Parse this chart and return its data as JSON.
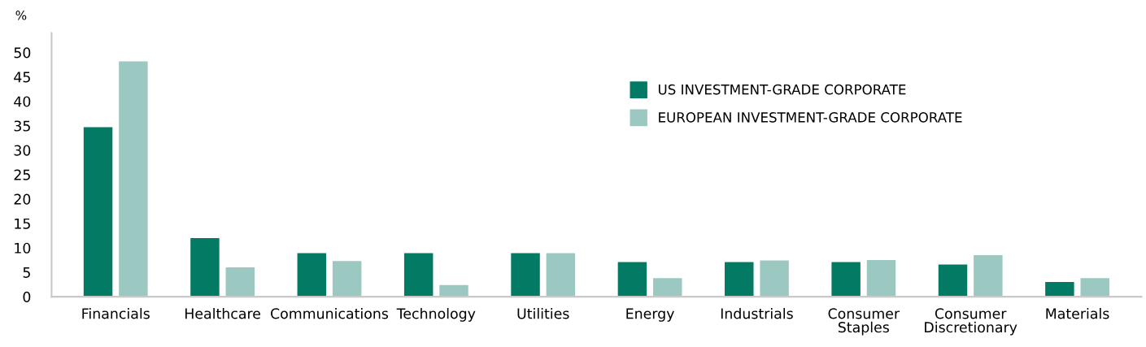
{
  "chart_data": {
    "type": "bar",
    "ylabel": "%",
    "categories": [
      "Financials",
      "Healthcare",
      "Communications",
      "Technology",
      "Utilities",
      "Energy",
      "Industrials",
      "Consumer\nStaples",
      "Consumer\nDiscretionary",
      "Materials"
    ],
    "series": [
      {
        "name": "US INVESTMENT-GRADE CORPORATE",
        "color": "#037a63",
        "values": [
          34.7,
          12.0,
          8.9,
          8.9,
          8.9,
          7.1,
          7.1,
          7.1,
          6.6,
          3.0
        ]
      },
      {
        "name": "EUROPEAN INVESTMENT-GRADE CORPORATE",
        "color": "#9bc9c1",
        "values": [
          48.2,
          6.0,
          7.3,
          2.4,
          8.9,
          3.8,
          7.4,
          7.5,
          8.5,
          3.8
        ]
      }
    ],
    "ylim": [
      0,
      54
    ],
    "yticks": [
      0,
      5,
      10,
      15,
      20,
      25,
      30,
      35,
      40,
      45,
      50
    ],
    "grid": false,
    "legend": "top right"
  }
}
